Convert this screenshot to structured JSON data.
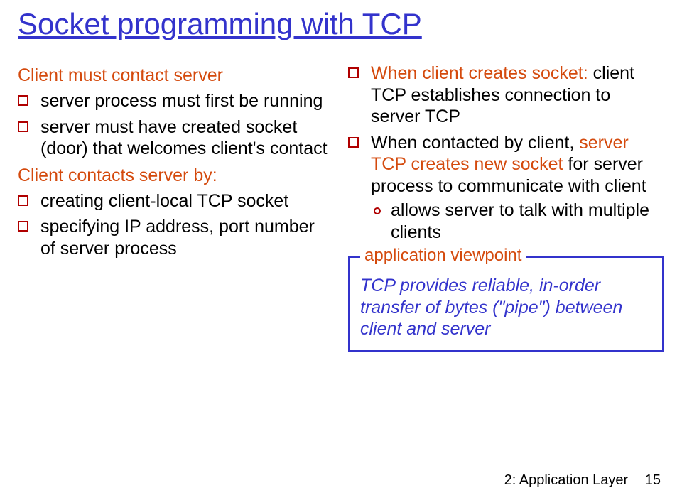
{
  "title": "Socket programming with TCP",
  "left": {
    "heading1": "Client must contact server",
    "bullets1": [
      "server process must first be running",
      "server must have created socket (door) that welcomes client's contact"
    ],
    "heading2": "Client contacts server by:",
    "bullets2": [
      "creating client-local TCP socket",
      "specifying IP address, port number of server process"
    ]
  },
  "right": {
    "item1_pre": "When client creates socket: ",
    "item1_post": "client TCP establishes connection to server TCP",
    "item2_pre": "When contacted by client, ",
    "item2_red": "server TCP creates new socket",
    "item2_post": " for server process to communicate with client",
    "sub1": "allows server to talk with multiple clients",
    "viewpoint_legend": "application viewpoint",
    "viewpoint_body": "TCP provides reliable, in-order transfer of bytes (\"pipe\") between client and server"
  },
  "footer": {
    "label": "2: Application Layer",
    "page": "15"
  },
  "colors": {
    "title": "#3333cc",
    "accent": "#d44a0d",
    "bullet_border": "#b00000",
    "box_border": "#3333cc"
  }
}
